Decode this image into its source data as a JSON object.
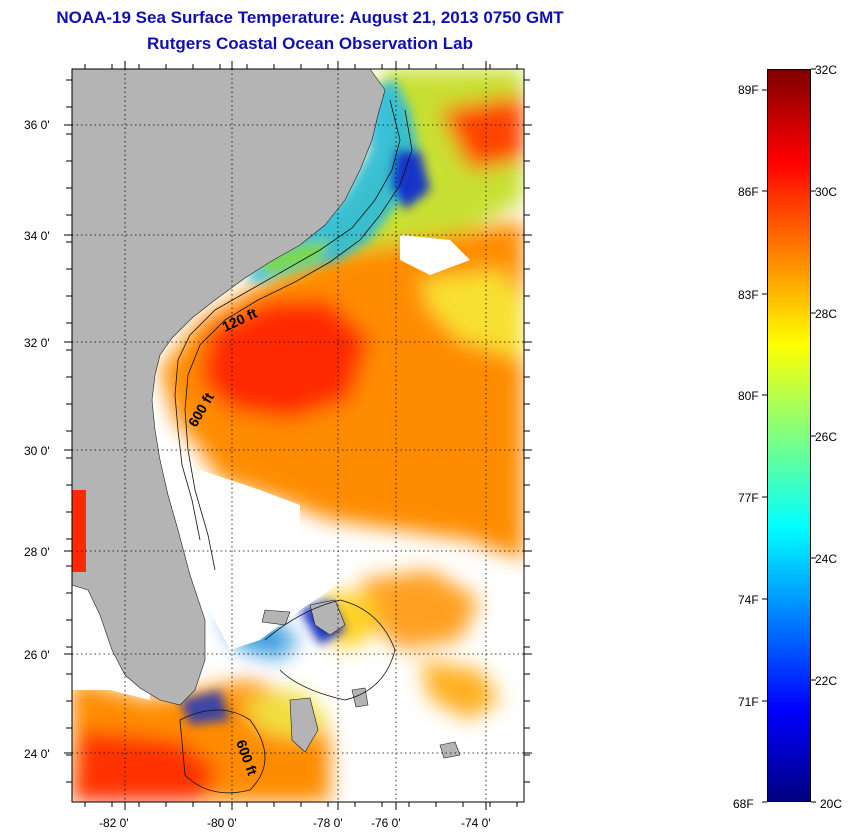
{
  "title": {
    "line1": "NOAA-19 Sea Surface Temperature:  August 21, 2013 0750 GMT",
    "line2": "Rutgers Coastal Ocean Observation Lab"
  },
  "map": {
    "lat_labels": [
      "36 0'",
      "34 0'",
      "32 0'",
      "30 0'",
      "28 0'",
      "26 0'",
      "24 0'"
    ],
    "lon_labels": [
      "-82 0'",
      "-80 0'",
      "-78 0'",
      "-76 0'",
      "-74 0'"
    ],
    "contour_labels": [
      "120 ft",
      "600 ft",
      "600 ft"
    ],
    "colors": {
      "land": "#b4b4b4",
      "no_data": "#ffffff",
      "warm_core": "#ff3000",
      "orange": "#ff8c00",
      "yellow": "#f8e800",
      "green": "#7ad84a",
      "cyan": "#22c8e6",
      "blue": "#1434c8"
    }
  },
  "colorbar": {
    "celsius_labels": [
      "32C",
      "30C",
      "28C",
      "26C",
      "24C",
      "22C",
      "20C"
    ],
    "fahrenheit_labels": [
      "89F",
      "86F",
      "83F",
      "80F",
      "77F",
      "74F",
      "71F",
      "68F"
    ],
    "min_c": 20,
    "max_c": 32
  }
}
